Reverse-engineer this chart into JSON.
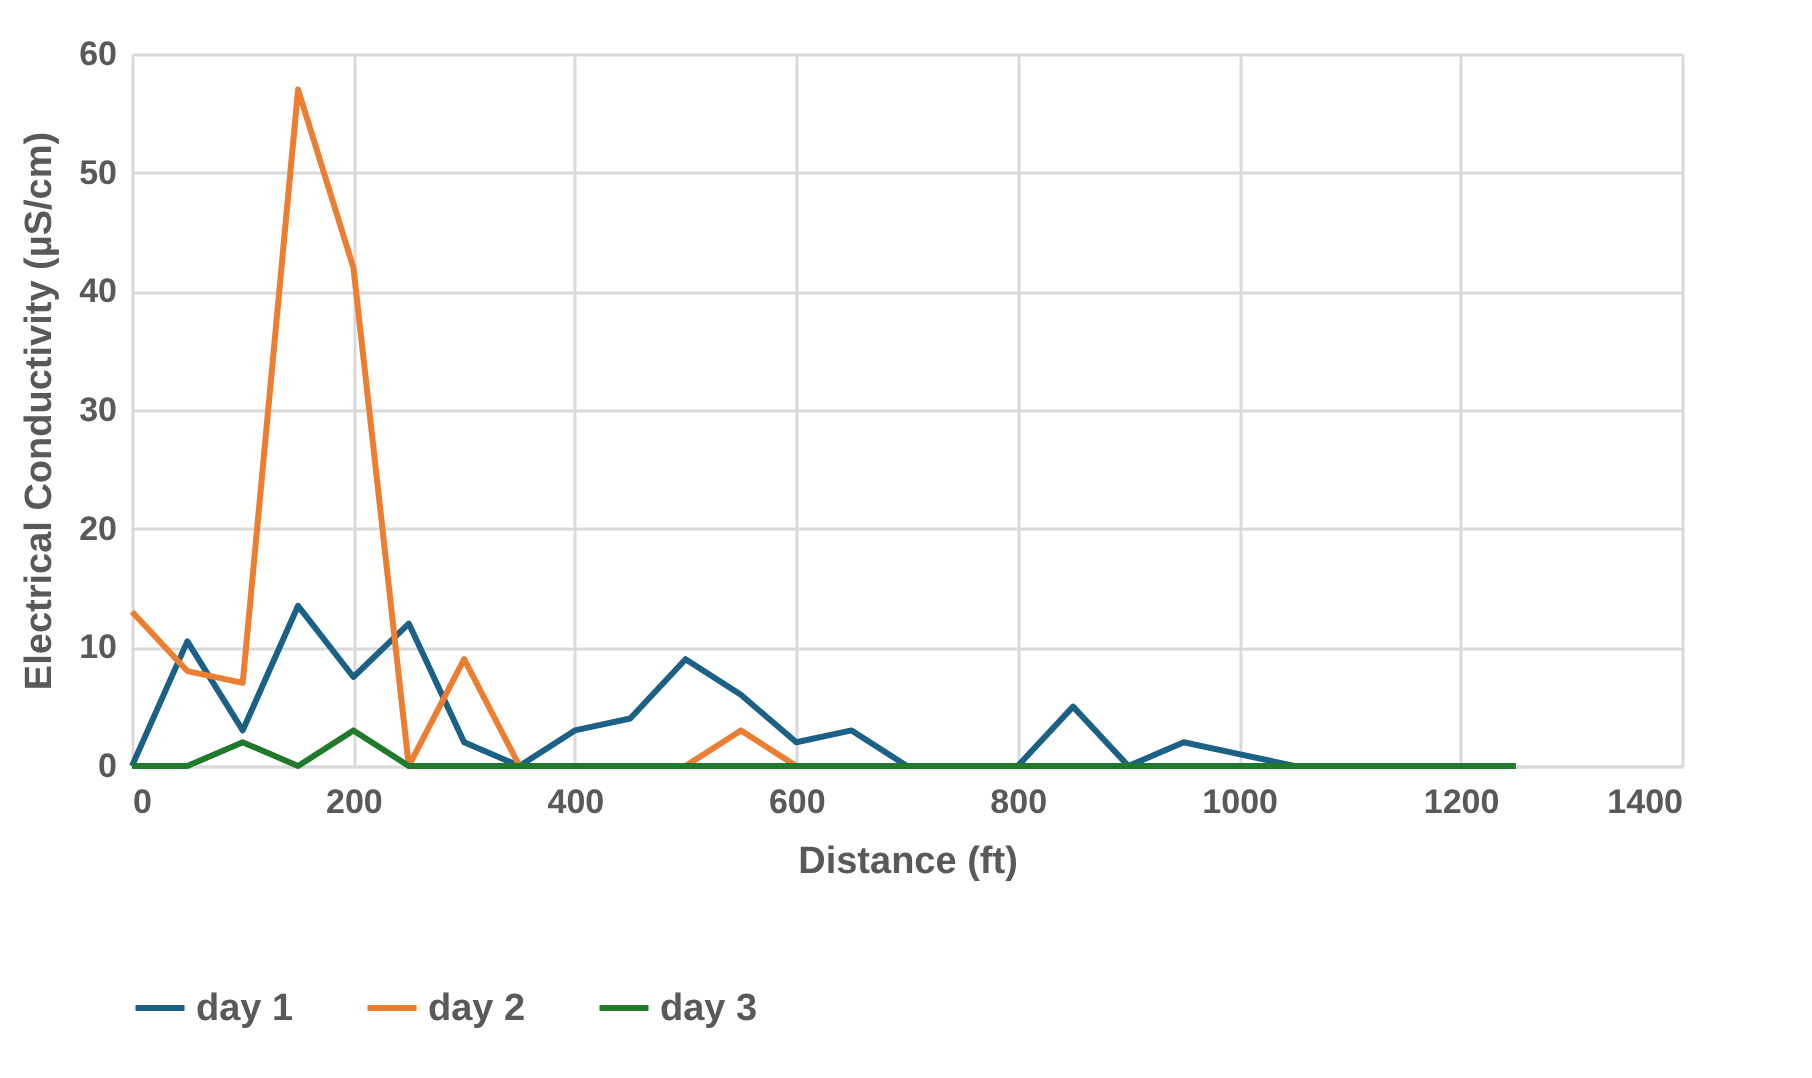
{
  "chart_data": {
    "type": "line",
    "xlabel": "Distance (ft)",
    "ylabel": "Electrical Conductivity (µS/cm)",
    "x": [
      0,
      50,
      100,
      150,
      200,
      250,
      300,
      350,
      400,
      450,
      500,
      550,
      600,
      650,
      700,
      750,
      800,
      850,
      900,
      950,
      1000,
      1050,
      1100,
      1150,
      1200,
      1250
    ],
    "series": [
      {
        "name": "day 1",
        "color": "#1b6185",
        "values": [
          0,
          10.5,
          3,
          13.5,
          7.5,
          12,
          2,
          0,
          3,
          4,
          9,
          6,
          2,
          3,
          0,
          0,
          0,
          5,
          0,
          2,
          1,
          0,
          null,
          null,
          null,
          null
        ]
      },
      {
        "name": "day 2",
        "color": "#ed7d31",
        "values": [
          13,
          8,
          7,
          57,
          42,
          0,
          9,
          0,
          null,
          null,
          0,
          3,
          0,
          null,
          null,
          null,
          null,
          null,
          null,
          null,
          null,
          null,
          null,
          null,
          null,
          null
        ]
      },
      {
        "name": "day 3",
        "color": "#217a2b",
        "values": [
          0,
          0,
          2,
          0,
          3,
          0,
          0,
          0,
          0,
          0,
          0,
          0,
          0,
          0,
          0,
          0,
          0,
          0,
          0,
          0,
          0,
          0,
          0,
          0,
          0,
          0
        ]
      }
    ],
    "xlim": [
      0,
      1400
    ],
    "xticks": [
      0,
      200,
      400,
      600,
      800,
      1000,
      1200,
      1400
    ],
    "ylim": [
      0,
      60
    ],
    "yticks": [
      0,
      10,
      20,
      30,
      40,
      50,
      60
    ],
    "grid": true,
    "legend": "bottom",
    "marker": "none",
    "line_style": "solid"
  }
}
